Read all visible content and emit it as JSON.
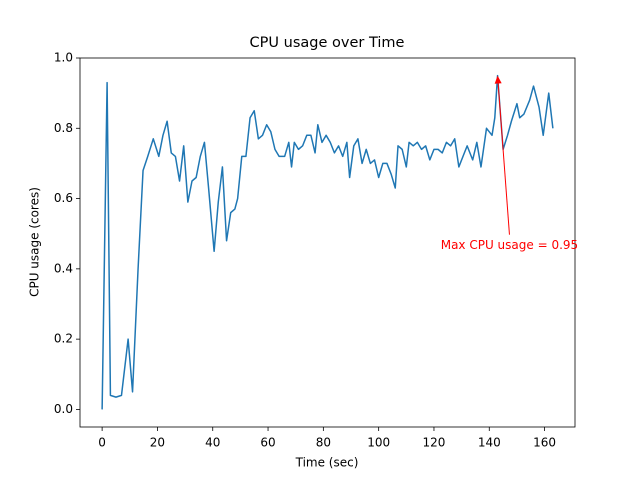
{
  "chart_data": {
    "type": "line",
    "title": "CPU usage over Time",
    "xlabel": "Time (sec)",
    "ylabel": "CPU usage (cores)",
    "x": [
      0,
      1.8,
      3,
      5,
      7,
      9.4,
      11,
      13,
      14.8,
      16.5,
      18.5,
      20.5,
      22,
      23.5,
      25,
      26.5,
      28,
      29.5,
      31,
      32.5,
      34,
      35.5,
      37,
      38.5,
      40.5,
      42,
      43.5,
      45,
      46.5,
      48,
      49,
      50.5,
      52,
      53.5,
      55,
      56.5,
      58,
      59.5,
      61,
      62.5,
      64,
      66,
      67.5,
      68.5,
      69.5,
      71,
      72.5,
      74,
      75.5,
      77,
      78,
      79.5,
      81,
      82.5,
      84,
      85.5,
      87,
      88.5,
      89.5,
      91,
      92.5,
      94,
      95.5,
      97,
      98.5,
      100,
      101.5,
      103,
      104.5,
      106,
      107,
      108.5,
      110,
      111,
      112.5,
      114,
      115.5,
      117,
      118.5,
      120,
      121.5,
      123,
      124.5,
      126,
      127.5,
      129,
      130.5,
      132,
      134,
      135.5,
      137,
      139,
      141,
      142,
      143,
      145,
      146.6,
      148,
      150,
      151,
      152.5,
      154.6,
      156,
      158,
      159.5,
      161.5,
      163
    ],
    "series": [
      {
        "name": "CPU usage",
        "color": "#1f77b4",
        "values": [
          0,
          0.93,
          0.04,
          0.035,
          0.04,
          0.2,
          0.05,
          0.4,
          0.68,
          0.72,
          0.77,
          0.72,
          0.78,
          0.82,
          0.73,
          0.72,
          0.65,
          0.75,
          0.59,
          0.65,
          0.66,
          0.72,
          0.76,
          0.63,
          0.45,
          0.59,
          0.69,
          0.48,
          0.56,
          0.57,
          0.6,
          0.72,
          0.72,
          0.83,
          0.85,
          0.77,
          0.78,
          0.81,
          0.79,
          0.74,
          0.72,
          0.72,
          0.76,
          0.69,
          0.76,
          0.74,
          0.75,
          0.78,
          0.78,
          0.73,
          0.81,
          0.76,
          0.78,
          0.76,
          0.73,
          0.75,
          0.72,
          0.76,
          0.66,
          0.75,
          0.77,
          0.7,
          0.74,
          0.7,
          0.71,
          0.66,
          0.7,
          0.7,
          0.67,
          0.63,
          0.75,
          0.74,
          0.69,
          0.76,
          0.75,
          0.76,
          0.74,
          0.75,
          0.71,
          0.74,
          0.74,
          0.73,
          0.76,
          0.75,
          0.77,
          0.69,
          0.72,
          0.75,
          0.71,
          0.76,
          0.69,
          0.8,
          0.78,
          0.83,
          0.95,
          0.74,
          0.78,
          0.82,
          0.87,
          0.83,
          0.84,
          0.88,
          0.92,
          0.86,
          0.78,
          0.9,
          0.8
        ]
      }
    ],
    "xlim": [
      -8,
      171
    ],
    "ylim": [
      -0.05,
      1.0
    ],
    "xticks": [
      0,
      20,
      40,
      60,
      80,
      100,
      120,
      140,
      160
    ],
    "yticks": [
      {
        "value": 0,
        "label": "0.0"
      },
      {
        "value": 0.2,
        "label": "0.2"
      },
      {
        "value": 0.4,
        "label": "0.4"
      },
      {
        "value": 0.6,
        "label": "0.6"
      },
      {
        "value": 0.8,
        "label": "0.8"
      },
      {
        "value": 1,
        "label": "1.0"
      }
    ],
    "annotations": [
      {
        "text": "Max CPU usage = 0.95",
        "xy": [
          143,
          0.95
        ],
        "xytext": [
          147.3,
          0.466
        ],
        "color": "#ff0000"
      }
    ]
  }
}
